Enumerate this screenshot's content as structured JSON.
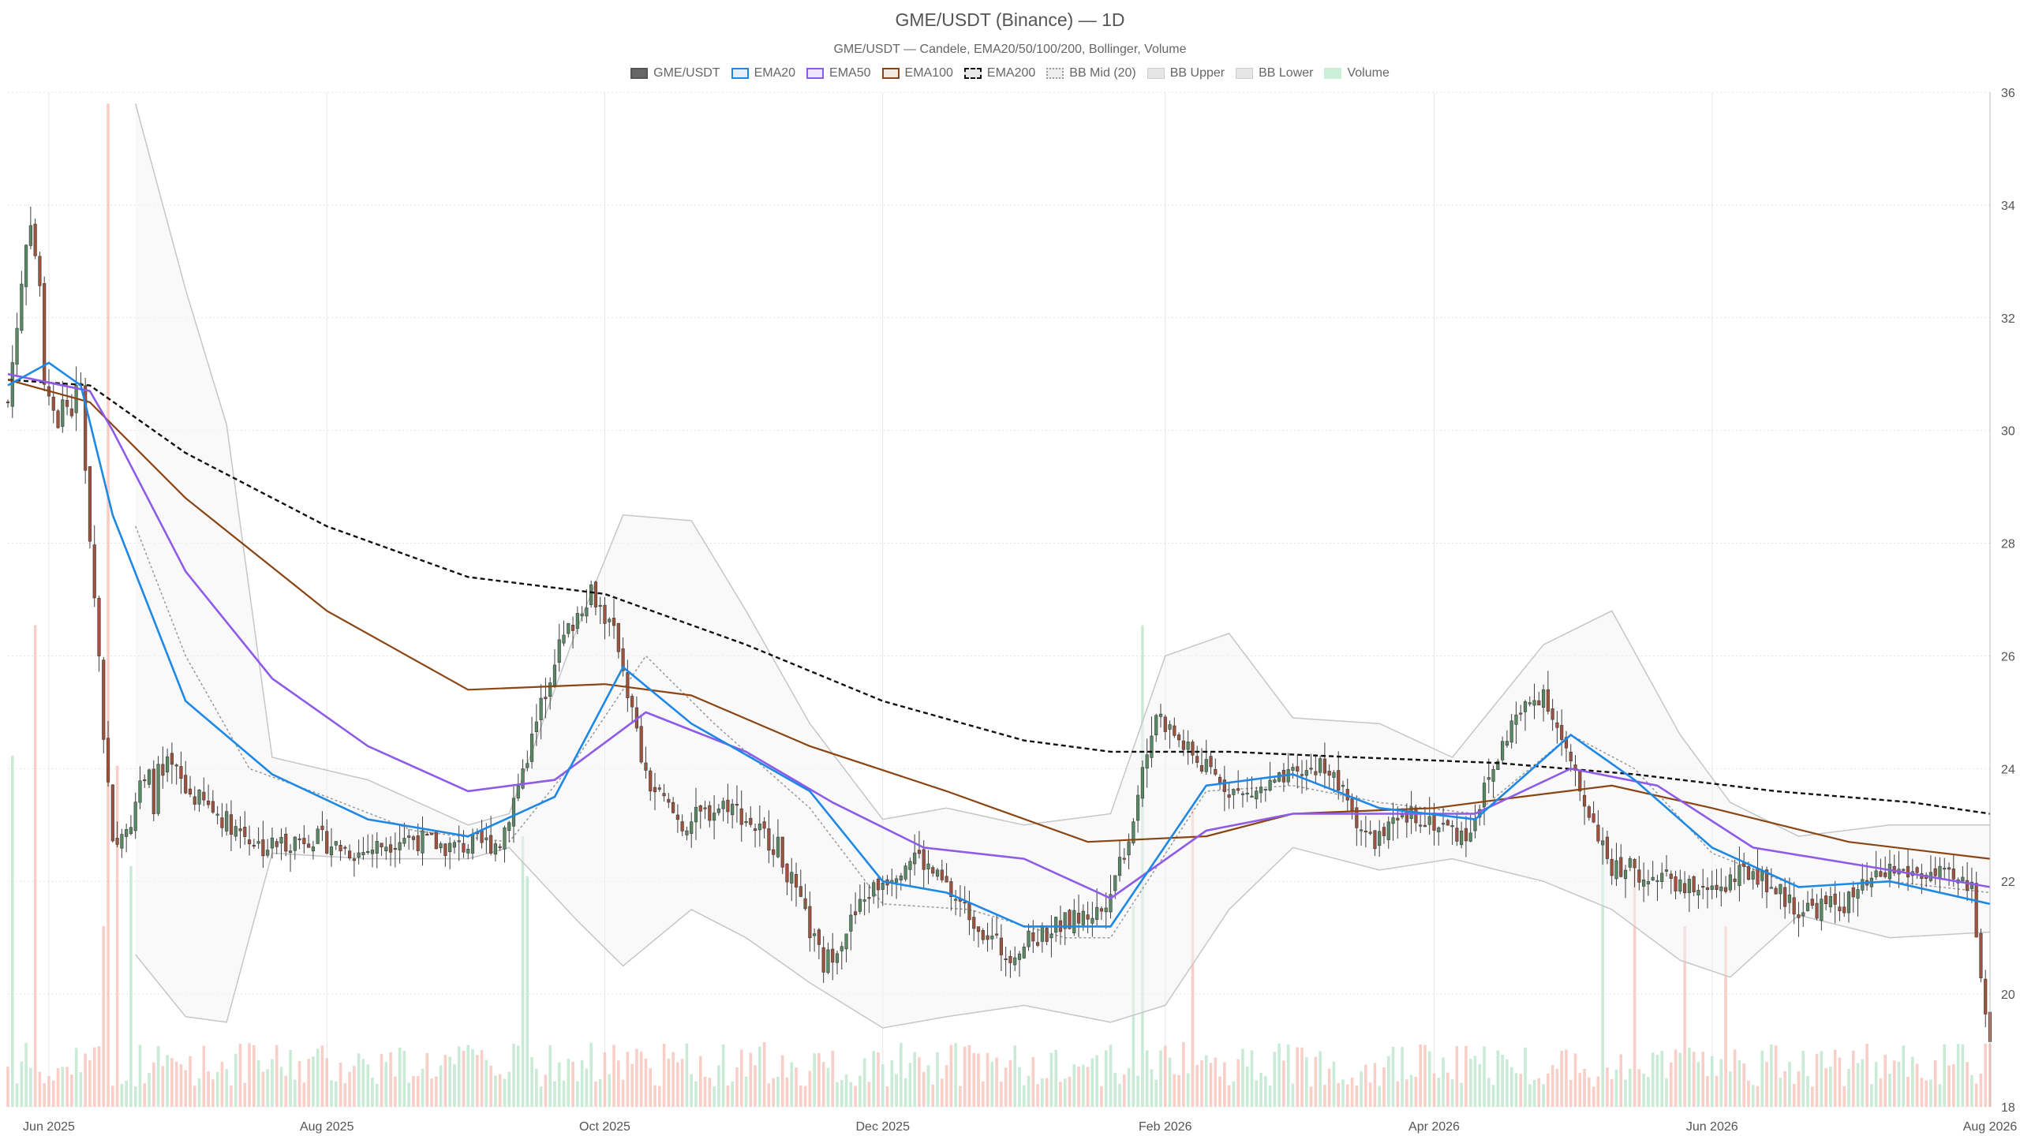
{
  "chart_data": {
    "type": "candlestick",
    "title": "GME/USDT (Binance) — 1D",
    "subtitle": "GME/USDT — Candele, EMA20/50/100/200, Bollinger, Volume",
    "legend": [
      {
        "name": "GME/USDT",
        "color": "#666666",
        "style": "fill"
      },
      {
        "name": "EMA20",
        "color": "#1e88e5",
        "style": "line"
      },
      {
        "name": "EMA50",
        "color": "#8e5be8",
        "style": "line"
      },
      {
        "name": "EMA100",
        "color": "#8b4513",
        "style": "line"
      },
      {
        "name": "EMA200",
        "color": "#111111",
        "style": "dashed"
      },
      {
        "name": "BB Mid (20)",
        "color": "#999999",
        "style": "dotted"
      },
      {
        "name": "BB Upper",
        "color": "#bbbbbb",
        "style": "fill"
      },
      {
        "name": "BB Lower",
        "color": "#bbbbbb",
        "style": "fill"
      },
      {
        "name": "Volume",
        "color": "#a8e6c4",
        "style": "fill"
      }
    ],
    "x_axis": {
      "range": [
        "2025-05-23",
        "2026-08-01"
      ],
      "tick_labels": [
        "Jun 2025",
        "Aug 2025",
        "Oct 2025",
        "Dec 2025",
        "Feb 2026",
        "Apr 2026",
        "Jun 2026",
        "Aug 2026"
      ],
      "tick_dates": [
        "2025-06-01",
        "2025-08-01",
        "2025-10-01",
        "2025-12-01",
        "2026-02-01",
        "2026-04-01",
        "2026-06-01",
        "2026-08-01"
      ]
    },
    "y_axis": {
      "range": [
        18,
        36
      ],
      "ticks": [
        18,
        20,
        22,
        24,
        26,
        28,
        30,
        32,
        34,
        36
      ],
      "side": "right"
    },
    "grid": true,
    "colors": {
      "up": "#5a8a64",
      "down": "#a0523d",
      "vol_up": "#bfe8cf",
      "vol_down": "#f7c6bd"
    },
    "price_path": {
      "dates": [
        "2025-05-23",
        "2025-05-28",
        "2025-06-01",
        "2025-06-08",
        "2025-06-15",
        "2025-06-20",
        "2025-06-28",
        "2025-07-08",
        "2025-07-18",
        "2025-07-28",
        "2025-08-08",
        "2025-08-18",
        "2025-08-28",
        "2025-09-08",
        "2025-09-15",
        "2025-09-20",
        "2025-09-28",
        "2025-10-04",
        "2025-10-10",
        "2025-10-18",
        "2025-10-28",
        "2025-11-08",
        "2025-11-18",
        "2025-11-28",
        "2025-12-08",
        "2025-12-18",
        "2025-12-28",
        "2026-01-08",
        "2026-01-18",
        "2026-01-24",
        "2026-01-30",
        "2026-02-08",
        "2026-02-18",
        "2026-02-28",
        "2026-03-08",
        "2026-03-18",
        "2026-03-28",
        "2026-04-08",
        "2026-04-18",
        "2026-04-25",
        "2026-05-02",
        "2026-05-10",
        "2026-05-20",
        "2026-05-30",
        "2026-06-10",
        "2026-06-20",
        "2026-06-30",
        "2026-07-10",
        "2026-07-20",
        "2026-07-28",
        "2026-08-01"
      ],
      "closes": [
        30.5,
        34.0,
        30.2,
        30.6,
        22.4,
        23.5,
        23.8,
        23.2,
        22.6,
        22.8,
        22.5,
        22.8,
        22.6,
        22.7,
        24.5,
        26.0,
        27.2,
        26.2,
        23.8,
        23.0,
        23.4,
        22.6,
        20.5,
        21.8,
        22.5,
        21.6,
        20.7,
        21.2,
        21.5,
        22.8,
        25.0,
        24.1,
        23.5,
        23.8,
        24.1,
        22.7,
        23.2,
        22.8,
        24.8,
        25.4,
        23.8,
        22.3,
        22.1,
        21.8,
        22.2,
        21.5,
        21.6,
        22.2,
        22.1,
        21.9,
        19.0
      ]
    },
    "ema20_path": {
      "dates": [
        "2025-05-23",
        "2025-06-01",
        "2025-06-08",
        "2025-06-15",
        "2025-07-01",
        "2025-07-20",
        "2025-08-10",
        "2025-09-01",
        "2025-09-20",
        "2025-10-05",
        "2025-10-20",
        "2025-11-15",
        "2025-12-01",
        "2025-12-15",
        "2026-01-01",
        "2026-01-20",
        "2026-02-10",
        "2026-03-01",
        "2026-03-20",
        "2026-04-10",
        "2026-05-01",
        "2026-05-15",
        "2026-06-01",
        "2026-06-20",
        "2026-07-10",
        "2026-08-01"
      ],
      "values": [
        30.8,
        31.2,
        30.8,
        28.5,
        25.2,
        23.9,
        23.1,
        22.8,
        23.5,
        25.8,
        24.8,
        23.6,
        22.0,
        21.8,
        21.2,
        21.2,
        23.7,
        23.9,
        23.3,
        23.1,
        24.6,
        23.8,
        22.6,
        21.9,
        22.0,
        21.6
      ]
    },
    "ema50_path": {
      "dates": [
        "2025-05-23",
        "2025-06-10",
        "2025-06-15",
        "2025-07-01",
        "2025-07-20",
        "2025-08-10",
        "2025-09-01",
        "2025-09-20",
        "2025-10-10",
        "2025-11-01",
        "2025-11-20",
        "2025-12-10",
        "2026-01-01",
        "2026-01-20",
        "2026-02-10",
        "2026-03-01",
        "2026-03-20",
        "2026-04-10",
        "2026-05-01",
        "2026-05-20",
        "2026-06-10",
        "2026-07-10",
        "2026-08-01"
      ],
      "values": [
        31.0,
        30.7,
        30.0,
        27.5,
        25.6,
        24.4,
        23.6,
        23.8,
        25.0,
        24.3,
        23.4,
        22.6,
        22.4,
        21.7,
        22.9,
        23.2,
        23.2,
        23.2,
        24.0,
        23.7,
        22.6,
        22.2,
        21.9
      ]
    },
    "ema100_path": {
      "dates": [
        "2025-05-23",
        "2025-06-10",
        "2025-07-01",
        "2025-08-01",
        "2025-09-01",
        "2025-10-01",
        "2025-10-20",
        "2025-11-15",
        "2025-12-15",
        "2026-01-15",
        "2026-02-10",
        "2026-03-01",
        "2026-04-01",
        "2026-04-20",
        "2026-05-10",
        "2026-06-01",
        "2026-07-01",
        "2026-08-01"
      ],
      "values": [
        30.9,
        30.5,
        28.8,
        26.8,
        25.4,
        25.5,
        25.3,
        24.4,
        23.6,
        22.7,
        22.8,
        23.2,
        23.3,
        23.5,
        23.7,
        23.3,
        22.7,
        22.4
      ]
    },
    "ema200_path": {
      "dates": [
        "2025-05-23",
        "2025-06-10",
        "2025-07-01",
        "2025-08-01",
        "2025-09-01",
        "2025-10-01",
        "2025-11-01",
        "2025-12-01",
        "2026-01-01",
        "2026-01-20",
        "2026-02-15",
        "2026-03-15",
        "2026-04-15",
        "2026-05-15",
        "2026-06-15",
        "2026-07-15",
        "2026-08-01"
      ],
      "values": [
        30.9,
        30.8,
        29.6,
        28.3,
        27.4,
        27.1,
        26.2,
        25.2,
        24.5,
        24.3,
        24.3,
        24.2,
        24.1,
        23.9,
        23.6,
        23.4,
        23.2
      ]
    },
    "bb_upper_path": {
      "dates": [
        "2025-06-20",
        "2025-07-01",
        "2025-07-10",
        "2025-07-20",
        "2025-08-10",
        "2025-09-01",
        "2025-09-10",
        "2025-09-25",
        "2025-10-05",
        "2025-10-20",
        "2025-11-01",
        "2025-11-15",
        "2025-12-01",
        "2025-12-15",
        "2026-01-01",
        "2026-01-20",
        "2026-02-01",
        "2026-02-15",
        "2026-03-01",
        "2026-03-20",
        "2026-04-05",
        "2026-04-25",
        "2026-05-10",
        "2026-05-25",
        "2026-06-05",
        "2026-06-20",
        "2026-07-10",
        "2026-08-01"
      ],
      "values": [
        35.8,
        32.5,
        30.1,
        24.2,
        23.8,
        23.0,
        23.2,
        26.5,
        28.5,
        28.4,
        26.8,
        24.8,
        23.1,
        23.3,
        23.0,
        23.2,
        26.0,
        26.4,
        24.9,
        24.8,
        24.2,
        26.2,
        26.8,
        24.6,
        23.4,
        22.8,
        23.0,
        23.0
      ]
    },
    "bb_lower_path": {
      "dates": [
        "2025-06-20",
        "2025-07-01",
        "2025-07-10",
        "2025-07-20",
        "2025-08-10",
        "2025-09-01",
        "2025-09-10",
        "2025-09-25",
        "2025-10-05",
        "2025-10-20",
        "2025-11-01",
        "2025-11-15",
        "2025-12-01",
        "2025-12-15",
        "2026-01-01",
        "2026-01-20",
        "2026-02-01",
        "2026-02-15",
        "2026-03-01",
        "2026-03-20",
        "2026-04-05",
        "2026-04-25",
        "2026-05-10",
        "2026-05-25",
        "2026-06-05",
        "2026-06-20",
        "2026-07-10",
        "2026-08-01"
      ],
      "values": [
        20.7,
        19.6,
        19.5,
        22.5,
        22.4,
        22.4,
        22.6,
        21.3,
        20.5,
        21.5,
        21.0,
        20.2,
        19.4,
        19.6,
        19.8,
        19.5,
        19.8,
        21.5,
        22.6,
        22.2,
        22.4,
        22.0,
        21.5,
        20.6,
        20.3,
        21.4,
        21.0,
        21.1
      ]
    },
    "bb_mid_path": {
      "dates": [
        "2025-06-20",
        "2025-07-01",
        "2025-07-15",
        "2025-08-01",
        "2025-08-20",
        "2025-09-10",
        "2025-09-25",
        "2025-10-10",
        "2025-10-25",
        "2025-11-15",
        "2025-12-01",
        "2025-12-20",
        "2026-01-10",
        "2026-01-20",
        "2026-02-10",
        "2026-03-01",
        "2026-03-20",
        "2026-04-10",
        "2026-05-01",
        "2026-05-15",
        "2026-06-01",
        "2026-06-20",
        "2026-07-10",
        "2026-08-01"
      ],
      "values": [
        28.3,
        26.0,
        24.0,
        23.5,
        22.9,
        22.7,
        24.2,
        26.0,
        24.8,
        23.3,
        21.6,
        21.5,
        21.0,
        21.0,
        23.6,
        23.7,
        23.4,
        23.2,
        24.6,
        24.0,
        22.5,
        21.9,
        22.0,
        21.8
      ]
    },
    "volume_scale": {
      "max_height_price_units": 17.8
    },
    "volume_spikes": {
      "dates": [
        "2025-05-24",
        "2025-05-29",
        "2025-06-13",
        "2025-06-14",
        "2025-06-16",
        "2025-06-19",
        "2025-09-13",
        "2025-09-14",
        "2026-01-25",
        "2026-01-27",
        "2026-02-07",
        "2026-05-08",
        "2026-05-15",
        "2026-05-26",
        "2026-06-04"
      ],
      "heights": [
        0.35,
        0.48,
        0.18,
        1.0,
        0.34,
        0.24,
        0.27,
        0.23,
        0.2,
        0.48,
        0.3,
        0.26,
        0.24,
        0.18,
        0.18
      ]
    }
  }
}
